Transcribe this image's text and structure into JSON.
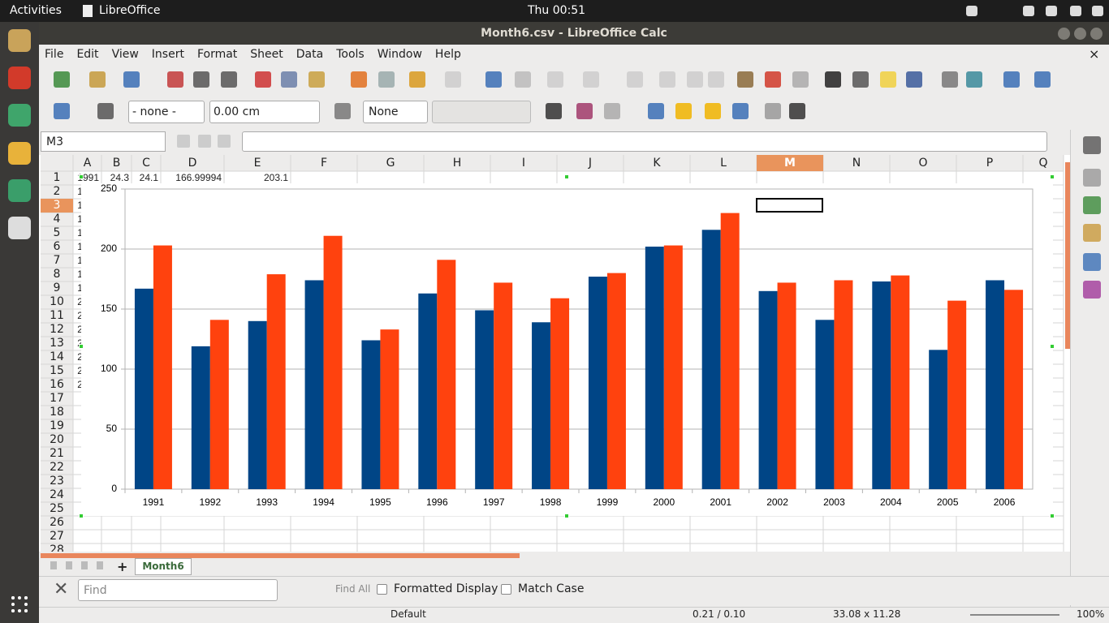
{
  "topbar": {
    "activities": "Activities",
    "app": "LibreOffice",
    "clock": "Thu 00:51"
  },
  "window_title": "Month6.csv - LibreOffice Calc",
  "menu": [
    "File",
    "Edit",
    "View",
    "Insert",
    "Format",
    "Sheet",
    "Data",
    "Tools",
    "Window",
    "Help"
  ],
  "toolbar": {
    "line_style": "- none -",
    "line_width": "0.00 cm",
    "area_style": "None"
  },
  "name_box": "M3",
  "sheet": {
    "columns": [
      "A",
      "B",
      "C",
      "D",
      "E",
      "F",
      "G",
      "H",
      "I",
      "J",
      "K",
      "L",
      "M",
      "N",
      "O",
      "P",
      "Q"
    ],
    "rows": [
      1,
      2,
      3,
      4,
      5,
      6,
      7,
      8,
      9,
      10,
      11,
      12,
      13,
      14,
      15,
      16,
      17,
      18,
      19,
      20,
      21,
      22,
      23,
      24,
      25,
      26,
      27,
      28
    ],
    "row1": [
      1991,
      24.3,
      24.1,
      166.99994,
      203.1
    ],
    "column_a": [
      1992,
      1993,
      1994,
      1995,
      1996,
      1997,
      1998,
      1999,
      2000,
      2001,
      2002,
      2003,
      2004,
      2005,
      2006
    ]
  },
  "sheet_tab": "Month6",
  "find_bar": {
    "placeholder": "Find",
    "find_all": "Find All",
    "formatted_display": "Formatted Display",
    "match_case": "Match Case"
  },
  "status_bar": {
    "page_style": "Default",
    "position": "0.21 / 0.10",
    "size": "33.08 x 11.28",
    "zoom": "100%"
  },
  "chart_data": {
    "type": "bar",
    "categories": [
      "1991",
      "1992",
      "1993",
      "1994",
      "1995",
      "1996",
      "1997",
      "1998",
      "1999",
      "2000",
      "2001",
      "2002",
      "2003",
      "2004",
      "2005",
      "2006"
    ],
    "series": [
      {
        "color": "#004586",
        "values": [
          167,
          119,
          140,
          174,
          124,
          163,
          149,
          139,
          177,
          202,
          216,
          165,
          141,
          173,
          116,
          174
        ]
      },
      {
        "color": "#ff420e",
        "values": [
          203,
          141,
          179,
          211,
          133,
          191,
          172,
          159,
          180,
          203,
          230,
          172,
          174,
          178,
          157,
          166
        ]
      }
    ],
    "ylim": [
      0,
      250
    ],
    "yticks": [
      0,
      50,
      100,
      150,
      200,
      250
    ],
    "grid": true
  }
}
